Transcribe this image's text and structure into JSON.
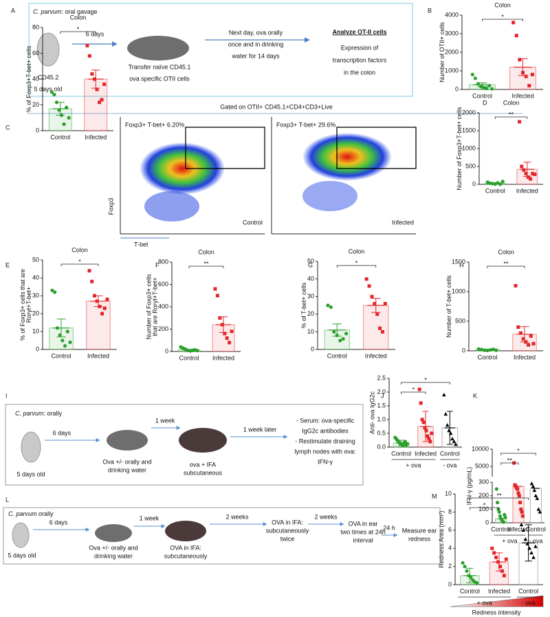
{
  "figure": {
    "header": "Gated on OTII+ CD45.1+CD4+CD3+Live"
  },
  "schemes": {
    "A": {
      "panel": "A",
      "organism": "C. parvum",
      "route": ": oral gavage",
      "step1": "6 days",
      "age": [
        "CD45.2",
        "5 days old"
      ],
      "transfer": [
        "Transfer naïve CD45.1",
        "ova specific OTII cells"
      ],
      "challenge": [
        "Next day, ova orally",
        "once and in drinking",
        "water for 14 days"
      ],
      "readout_title": "Analyze OT-II cells",
      "readout": [
        "Expression of",
        "transcription factors",
        "in the colon"
      ]
    },
    "I": {
      "panel": "I",
      "organism": "C. parvum",
      "route": ": orally",
      "step1": "6 days",
      "age": "5 days old",
      "step2": "1 week",
      "ova": [
        "Ova +/- orally and",
        "drinking water"
      ],
      "immunize": [
        "ova + IFA",
        "subcutaneous"
      ],
      "step3": "1 week later",
      "readout": [
        "- Serum: ova-specific",
        "IgG2c antibodies",
        "- Restimulate draining",
        "lymph nodes with ova:",
        "IFN-γ"
      ]
    },
    "L": {
      "panel": "L",
      "organism": "C. parvum",
      "route": " orally",
      "step1": "6 days",
      "age": "5 days old",
      "step2": "1 week",
      "ova": [
        "Ova +/- orally and",
        "drinking water"
      ],
      "immunize": [
        "OVA in IFA:",
        "subcutaneously"
      ],
      "step3": "2 weeks",
      "boost": [
        "OVA in IFA:",
        "subcutaneously",
        "twice"
      ],
      "step4": "2 weeks",
      "ear": [
        "OVA in ear",
        "two times at 24h",
        "interval"
      ],
      "step5": "24 h",
      "readout": [
        "Measure ear",
        "redness"
      ]
    }
  },
  "flow": {
    "y_axis": "Foxp3",
    "x_axis": "T-bet",
    "plots": [
      {
        "gate": "Foxp3+ T-bet+ 6.20%",
        "group": "Control"
      },
      {
        "gate": "Foxp3+ T-bet+ 29.6%",
        "group": "Infected"
      }
    ]
  },
  "chart_data": [
    {
      "type": "bar",
      "panel": "B",
      "title": "Colon",
      "ylabel": [
        "Number of OTII+ cells"
      ],
      "categories": [
        "Control",
        "Infected"
      ],
      "colors": [
        "#2ca02c",
        "#e3262a"
      ],
      "markers": [
        "circle",
        "square"
      ],
      "values": [
        250,
        1200
      ],
      "errors": [
        100,
        450
      ],
      "points": [
        [
          800,
          600,
          300,
          150,
          100,
          50,
          200,
          30
        ],
        [
          3600,
          2900,
          1600,
          900,
          700,
          200,
          800
        ]
      ],
      "ylim": [
        0,
        4000
      ],
      "yticks": [
        0,
        1000,
        2000,
        3000,
        4000
      ],
      "comparisons": [
        {
          "label": "*",
          "groups": [
            0,
            1
          ]
        }
      ]
    },
    {
      "type": "bar",
      "panel": "C",
      "title": "Colon",
      "ylabel": [
        "% of Foxp3+T-bet+ cells"
      ],
      "categories": [
        "Control",
        "Infected"
      ],
      "colors": [
        "#2ca02c",
        "#e3262a"
      ],
      "markers": [
        "circle",
        "square"
      ],
      "values": [
        17,
        40
      ],
      "errors": [
        5,
        7
      ],
      "points": [
        [
          30,
          28,
          22,
          16,
          12,
          5,
          18,
          10
        ],
        [
          66,
          58,
          44,
          40,
          32,
          22,
          24,
          36
        ]
      ],
      "ylim": [
        0,
        80
      ],
      "yticks": [
        0,
        20,
        40,
        60,
        80
      ],
      "comparisons": [
        {
          "label": "*",
          "groups": [
            0,
            1
          ]
        }
      ]
    },
    {
      "type": "bar",
      "panel": "D",
      "title": "Colon",
      "ylabel": [
        "Number of Foxp3+T-bet+ cells"
      ],
      "categories": [
        "Control",
        "Infected"
      ],
      "colors": [
        "#2ca02c",
        "#e3262a"
      ],
      "markers": [
        "circle",
        "square"
      ],
      "values": [
        30,
        420
      ],
      "errors": [
        10,
        200
      ],
      "points": [
        [
          60,
          30,
          20,
          10,
          40,
          5,
          80
        ],
        [
          1750,
          500,
          400,
          300,
          200,
          150,
          300,
          280
        ]
      ],
      "ylim": [
        0,
        2000
      ],
      "yticks": [
        0,
        500,
        1000,
        1500,
        2000
      ],
      "comparisons": [
        {
          "label": "**",
          "groups": [
            0,
            1
          ]
        }
      ]
    },
    {
      "type": "bar",
      "panel": "E",
      "title": "Colon",
      "ylabel": [
        "% of Foxp3+ cells that are",
        "Rorγt+T-bet+"
      ],
      "categories": [
        "Control",
        "Infected"
      ],
      "colors": [
        "#2ca02c",
        "#e3262a"
      ],
      "markers": [
        "circle",
        "square"
      ],
      "values": [
        12,
        27
      ],
      "errors": [
        5,
        3
      ],
      "points": [
        [
          33,
          32,
          12,
          8,
          5,
          2,
          10,
          4
        ],
        [
          44,
          38,
          30,
          27,
          24,
          20,
          23,
          28
        ]
      ],
      "ylim": [
        0,
        50
      ],
      "yticks": [
        0,
        10,
        20,
        30,
        40,
        50
      ],
      "comparisons": [
        {
          "label": "*",
          "groups": [
            0,
            1
          ]
        }
      ]
    },
    {
      "type": "bar",
      "panel": "F",
      "title": "Colon",
      "ylabel": [
        "Number of Foxp3+ cells",
        "that are Rorγt+T-bet+"
      ],
      "categories": [
        "Control",
        "Infected"
      ],
      "colors": [
        "#2ca02c",
        "#e3262a"
      ],
      "markers": [
        "circle",
        "square"
      ],
      "values": [
        15,
        240
      ],
      "errors": [
        5,
        70
      ],
      "points": [
        [
          40,
          30,
          20,
          10,
          5,
          10,
          15,
          8
        ],
        [
          560,
          500,
          300,
          240,
          160,
          120,
          80,
          180
        ]
      ],
      "ylim": [
        0,
        800
      ],
      "yticks": [
        0,
        200,
        400,
        600,
        800
      ],
      "comparisons": [
        {
          "label": "**",
          "groups": [
            0,
            1
          ]
        }
      ]
    },
    {
      "type": "bar",
      "panel": "G",
      "title": "Colon",
      "ylabel": [
        "% of T-bet+ cells"
      ],
      "categories": [
        "Control",
        "Infected"
      ],
      "colors": [
        "#2ca02c",
        "#e3262a"
      ],
      "markers": [
        "circle",
        "square"
      ],
      "values": [
        11,
        25
      ],
      "errors": [
        3.5,
        4
      ],
      "points": [
        [
          25,
          24,
          10,
          8,
          5,
          6,
          9
        ],
        [
          40,
          36,
          30,
          26,
          20,
          12,
          10,
          26
        ]
      ],
      "ylim": [
        0,
        50
      ],
      "yticks": [
        0,
        10,
        20,
        30,
        40,
        50
      ],
      "comparisons": [
        {
          "label": "*",
          "groups": [
            0,
            1
          ]
        }
      ]
    },
    {
      "type": "bar",
      "panel": "H",
      "title": "Colon",
      "ylabel": [
        "Number of T-bet+ cells"
      ],
      "categories": [
        "Control",
        "Infected"
      ],
      "colors": [
        "#2ca02c",
        "#e3262a"
      ],
      "markers": [
        "circle",
        "square"
      ],
      "values": [
        20,
        280
      ],
      "errors": [
        8,
        130
      ],
      "points": [
        [
          30,
          20,
          10,
          5,
          15,
          25,
          10
        ],
        [
          1100,
          400,
          300,
          200,
          150,
          100,
          250,
          120
        ]
      ],
      "ylim": [
        0,
        1500
      ],
      "yticks": [
        0,
        500,
        1000,
        1500
      ],
      "comparisons": [
        {
          "label": "**",
          "groups": [
            0,
            1
          ]
        }
      ]
    },
    {
      "type": "bar",
      "panel": "J",
      "ylabel": [
        "Anti- ova IgG2c"
      ],
      "categories": [
        "Control",
        "Infected",
        "Control"
      ],
      "colors": [
        "#2ca02c",
        "#e3262a",
        "#000000"
      ],
      "markers": [
        "circle",
        "square",
        "triangle"
      ],
      "values": [
        0.15,
        0.75,
        0.7
      ],
      "errors": [
        0.1,
        0.55,
        0.6
      ],
      "points": [
        [
          0.35,
          0.3,
          0.25,
          0.2,
          0.15,
          0.1,
          0.1,
          0.05,
          0.15,
          0.2,
          0.08,
          0.12
        ],
        [
          2.1,
          1.6,
          1.0,
          0.9,
          0.7,
          0.6,
          0.4,
          0.3,
          0.2,
          0.5
        ],
        [
          1.9,
          1.2,
          0.8,
          0.6,
          0.5,
          0.3,
          0.2,
          0.1
        ]
      ],
      "ylim": [
        0,
        2.5
      ],
      "yticks": [
        {
          "value": 0,
          "label": "0.0"
        },
        0.5,
        {
          "value": 1,
          "label": "1.0"
        },
        1.5,
        {
          "value": 2,
          "label": "2.0"
        },
        2.5
      ],
      "comparisons": [
        {
          "label": "*",
          "groups": [
            0,
            1
          ]
        },
        {
          "label": "*",
          "groups": [
            0,
            2
          ]
        }
      ],
      "group_labels": [
        {
          "label": "+ ova",
          "span": [
            0,
            1
          ]
        },
        {
          "label": "- ova",
          "span": [
            2,
            2
          ]
        }
      ]
    },
    {
      "type": "bar",
      "panel": "K",
      "ylabel": [
        "IFN-γ (pg/mL)"
      ],
      "categories": [
        "Control",
        "Infected",
        "Control"
      ],
      "colors": [
        "#2ca02c",
        "#e3262a",
        "#000000"
      ],
      "markers": [
        "circle",
        "square",
        "triangle"
      ],
      "values": [
        30,
        270,
        255
      ],
      "points": [
        [
          250,
          150,
          100,
          80,
          50,
          30,
          20,
          10,
          5,
          60,
          40
        ],
        [
          6000,
          280,
          270,
          260,
          250,
          220,
          200,
          150,
          100,
          80,
          50
        ],
        [
          290,
          270,
          240,
          200,
          180,
          100,
          80
        ]
      ],
      "ylim": [
        0,
        10000
      ],
      "yticks": [
        0,
        100,
        200,
        300,
        5000,
        10000
      ],
      "axis_break": [
        300,
        2000
      ],
      "comparisons": [
        {
          "label": "**",
          "groups": [
            0,
            1
          ]
        },
        {
          "label": "*",
          "groups": [
            0,
            2
          ]
        }
      ],
      "group_labels": [
        {
          "label": "+ ova",
          "span": [
            0,
            1
          ]
        },
        {
          "label": "- ova",
          "span": [
            2,
            2
          ]
        }
      ]
    },
    {
      "type": "bar",
      "panel": "M",
      "ylabel": [
        "Redness Area (mm²)"
      ],
      "categories": [
        "Control",
        "Infected",
        "Control"
      ],
      "colors": [
        "#2ca02c",
        "#e3262a",
        "#000000"
      ],
      "markers": [
        "circle",
        "square",
        "triangle"
      ],
      "values": [
        1.0,
        2.5,
        4.6
      ],
      "errors": [
        0.8,
        1.0,
        2.0
      ],
      "points": [
        [
          2.4,
          2,
          1.5,
          1,
          0.8,
          0.5,
          0.3,
          0.2
        ],
        [
          4,
          3.5,
          3,
          2.5,
          2,
          1.5,
          1,
          2.8
        ],
        [
          6.6,
          6,
          5,
          4.5,
          4,
          3.5,
          3,
          4.2
        ]
      ],
      "ylim": [
        0,
        10
      ],
      "yticks": [
        0,
        2,
        4,
        6,
        8,
        10
      ],
      "comparisons": [
        {
          "label": "*",
          "groups": [
            0,
            1
          ]
        },
        {
          "label": "**",
          "groups": [
            0,
            2
          ]
        }
      ],
      "group_labels": [
        {
          "label": "+ ova",
          "span": [
            0,
            1
          ]
        },
        {
          "label": "- ova",
          "span": [
            2,
            2
          ]
        }
      ],
      "annotation": "Redness intensity"
    }
  ]
}
